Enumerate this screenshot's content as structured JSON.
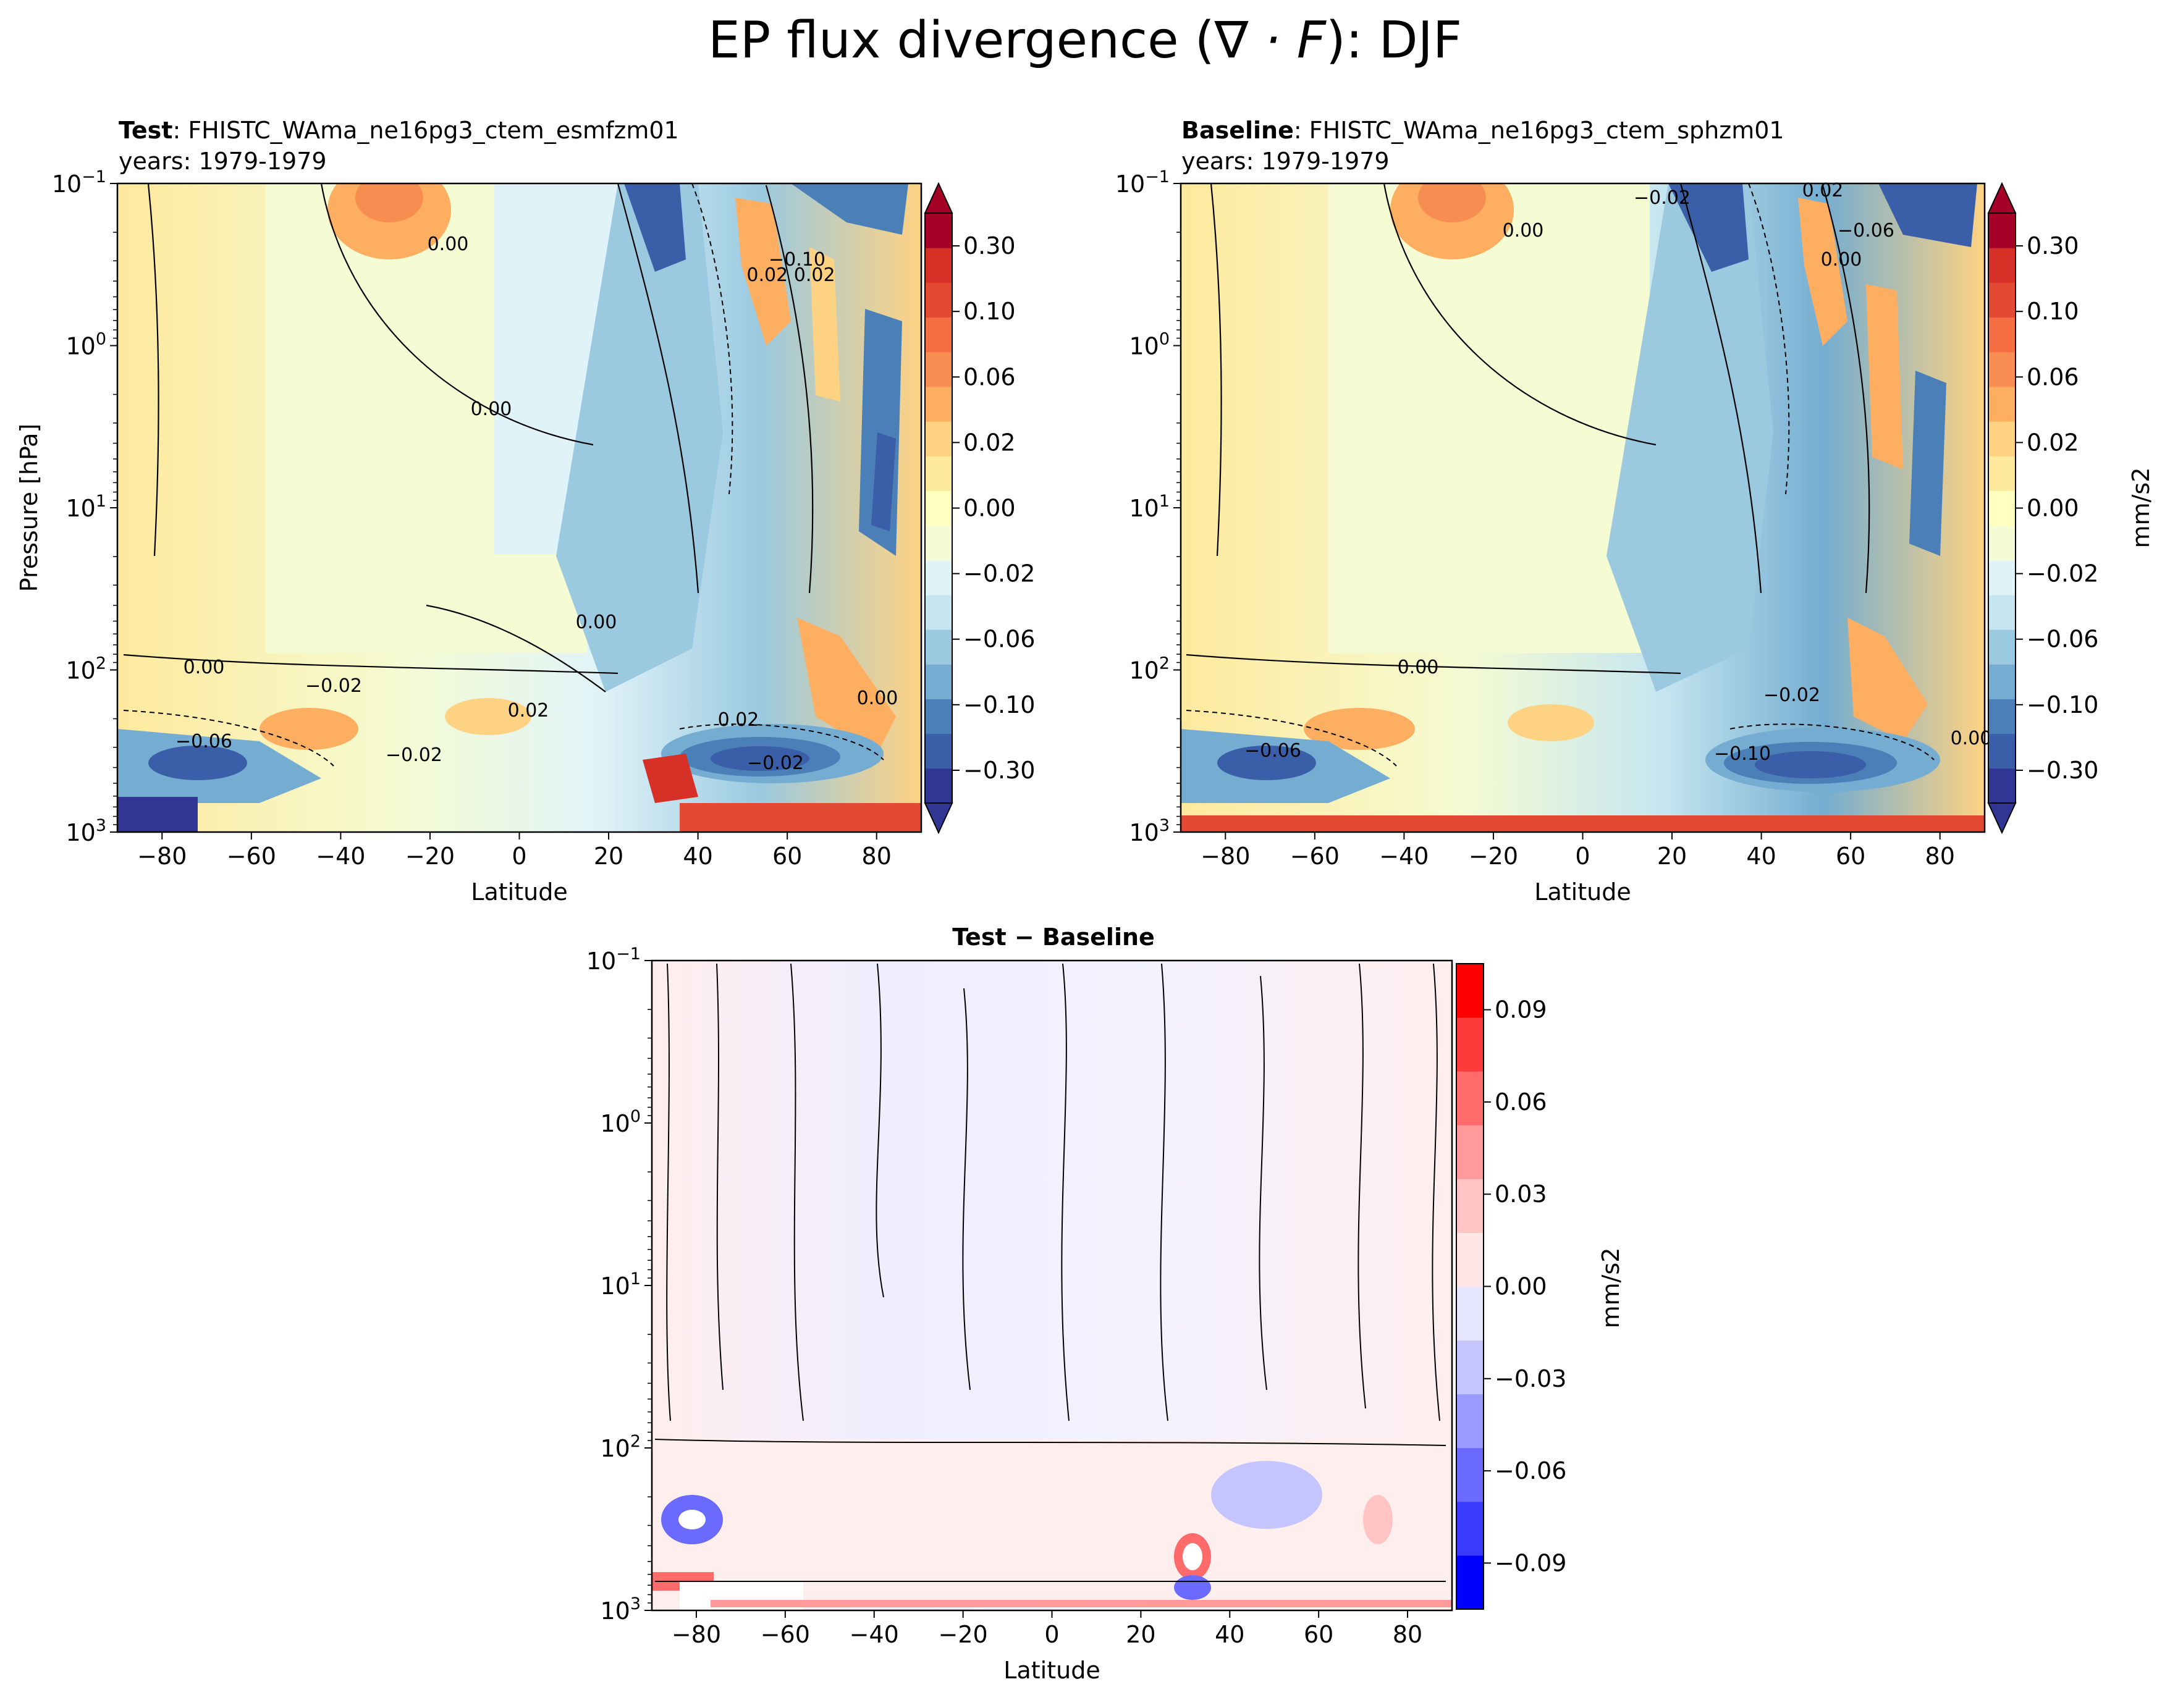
{
  "figure": {
    "title_prefix": "EP flux divergence (",
    "title_math": "∇ · F",
    "title_suffix": "): DJF"
  },
  "panels": [
    {
      "id": "test",
      "label": "Test",
      "name": ": FHISTC_WAma_ne16pg3_ctem_esmfzm01",
      "years": "years: 1979-1979",
      "ylabel": "Pressure [hPa]",
      "xlabel": "Latitude"
    },
    {
      "id": "baseline",
      "label": "Baseline",
      "name": ": FHISTC_WAma_ne16pg3_ctem_sphzm01",
      "years": "years: 1979-1979",
      "ylabel": "",
      "xlabel": "Latitude"
    },
    {
      "id": "diff",
      "label": "Test − Baseline",
      "xlabel": "Latitude"
    }
  ],
  "colorbars": {
    "main": {
      "ticks": [
        "0.30",
        "0.10",
        "0.06",
        "0.02",
        "0.00",
        "−0.02",
        "−0.06",
        "−0.10",
        "−0.30"
      ],
      "unit": "mm/s2",
      "colors": [
        "#313695",
        "#3a5fa8",
        "#4a7fb8",
        "#74add1",
        "#9ac9e0",
        "#c5e6f0",
        "#e0f3f8",
        "#f5fbd2",
        "#ffffbf",
        "#fee99d",
        "#fed283",
        "#fdae61",
        "#f88d52",
        "#f46d43",
        "#e34a33",
        "#d73027",
        "#a50026"
      ]
    },
    "diff": {
      "ticks": [
        "0.09",
        "0.06",
        "0.03",
        "0.00",
        "−0.03",
        "−0.06",
        "−0.09"
      ],
      "unit": "mm/s2",
      "colors": [
        "#0000ff",
        "#3a3aff",
        "#6a6aff",
        "#9a9aff",
        "#c4c4ff",
        "#e6e6ff",
        "#ffe6e6",
        "#ffc4c4",
        "#ff9a9a",
        "#ff6a6a",
        "#ff3a3a",
        "#ff0000"
      ]
    }
  },
  "chart_data": [
    {
      "type": "heatmap",
      "title": "Test: FHISTC_WAma_ne16pg3_ctem_esmfzm01",
      "xlabel": "Latitude",
      "ylabel": "Pressure [hPa]",
      "xlim": [
        -90,
        90
      ],
      "ylim": [
        1000,
        0.1
      ],
      "yscale": "log",
      "xticks": [
        "−80",
        "−60",
        "−40",
        "−20",
        "0",
        "20",
        "40",
        "60",
        "80"
      ],
      "yticks": [
        "10^-1",
        "10^0",
        "10^1",
        "10^2",
        "10^3"
      ],
      "contour_labels": [
        "0.00",
        "0.00",
        "0.00",
        "0.00",
        "−0.02",
        "0.02",
        "−0.06",
        "−0.02",
        "0.02",
        "−0.02",
        "−0.10",
        "0.02 0.02",
        "0.00"
      ],
      "features": [
        {
          "region": "upper stratosphere near 30S",
          "sign": "positive",
          "peak": 0.06
        },
        {
          "region": "20-60N 200-700 hPa",
          "sign": "negative",
          "peak": -0.1
        },
        {
          "region": "polar lower levels",
          "sign": "mixed",
          "peak": 0.3
        }
      ]
    },
    {
      "type": "heatmap",
      "title": "Baseline: FHISTC_WAma_ne16pg3_ctem_sphzm01",
      "xlabel": "Latitude",
      "xlim": [
        -90,
        90
      ],
      "ylim": [
        1000,
        0.1
      ],
      "yscale": "log",
      "xticks": [
        "−80",
        "−60",
        "−40",
        "−20",
        "0",
        "20",
        "40",
        "60",
        "80"
      ],
      "yticks": [
        "10^-1",
        "10^0",
        "10^1",
        "10^2",
        "10^3"
      ],
      "contour_labels": [
        "−0.02",
        "0.02",
        "−0.06",
        "0.00",
        "0.00",
        "−0.02",
        "0.00",
        "−0.10",
        "−0.06",
        "0.00"
      ]
    },
    {
      "type": "heatmap",
      "title": "Test − Baseline",
      "xlabel": "Latitude",
      "xlim": [
        -90,
        90
      ],
      "ylim": [
        1000,
        0.1
      ],
      "yscale": "log",
      "xticks": [
        "−80",
        "−60",
        "−40",
        "−20",
        "0",
        "20",
        "40",
        "60",
        "80"
      ],
      "yticks": [
        "10^-1",
        "10^0",
        "10^1",
        "10^2",
        "10^3"
      ],
      "colorbar_range": [
        -0.1,
        0.1
      ]
    }
  ]
}
